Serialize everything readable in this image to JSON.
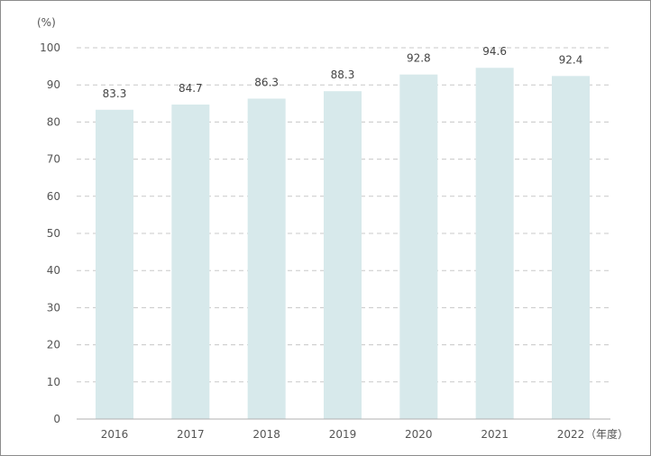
{
  "chart_data": {
    "type": "bar",
    "y_unit_label": "(%)",
    "x_unit_label": "（年度）",
    "categories": [
      "2016",
      "2017",
      "2018",
      "2019",
      "2020",
      "2021",
      "2022"
    ],
    "values": [
      83.3,
      84.7,
      86.3,
      88.3,
      92.8,
      94.6,
      92.4
    ],
    "value_labels": [
      "83.3",
      "84.7",
      "86.3",
      "88.3",
      "92.8",
      "94.6",
      "92.4"
    ],
    "ylim": [
      0,
      100
    ],
    "yticks": [
      "0",
      "10",
      "20",
      "30",
      "40",
      "50",
      "60",
      "70",
      "80",
      "90",
      "100"
    ],
    "grid": true,
    "bar_color": "#d7e9eb"
  }
}
